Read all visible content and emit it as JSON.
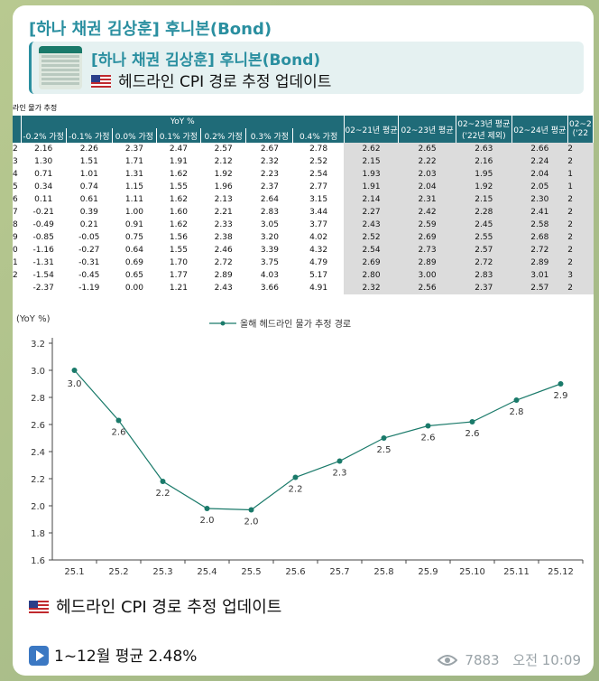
{
  "message": {
    "channel_title": "[하나 채권 김상훈] 후니본(Bond)",
    "reply": {
      "title": "[하나 채권 김상훈] 후니본(Bond)",
      "text": "헤드라인 CPI 경로 추정 업데이트"
    },
    "caption_line": "헤드라인 CPI 경로 추정 업데이트",
    "summary": "1~12월 평균 2.48%",
    "views": "7883",
    "time": "오전 10:09",
    "icons": {
      "flag": "us-flag-icon",
      "play": "play-button-icon",
      "views": "eye-icon"
    }
  },
  "table": {
    "label": "라인 물가 추정",
    "group_header": "YoY %",
    "columns": [
      "-0.2% 가정",
      "-0.1% 가정",
      "0.0% 가정",
      "0.1% 가정",
      "0.2% 가정",
      "0.3% 가정",
      "0.4% 가정"
    ],
    "avg_columns": [
      "02~21년 평균",
      "02~23년 평균",
      "02~23년 평균",
      "02~24년 평균",
      "02~2"
    ],
    "avg_sub": [
      "",
      "",
      "('22년 제외)",
      "",
      "('22"
    ],
    "rows": [
      {
        "idx": "2",
        "v": [
          "2.16",
          "2.26",
          "2.37",
          "2.47",
          "2.57",
          "2.67",
          "2.78"
        ],
        "a": [
          "2.62",
          "2.65",
          "2.63",
          "2.66",
          "2"
        ]
      },
      {
        "idx": "3",
        "v": [
          "1.30",
          "1.51",
          "1.71",
          "1.91",
          "2.12",
          "2.32",
          "2.52"
        ],
        "a": [
          "2.15",
          "2.22",
          "2.16",
          "2.24",
          "2"
        ]
      },
      {
        "idx": "4",
        "v": [
          "0.71",
          "1.01",
          "1.31",
          "1.62",
          "1.92",
          "2.23",
          "2.54"
        ],
        "a": [
          "1.93",
          "2.03",
          "1.95",
          "2.04",
          "1"
        ]
      },
      {
        "idx": "5",
        "v": [
          "0.34",
          "0.74",
          "1.15",
          "1.55",
          "1.96",
          "2.37",
          "2.77"
        ],
        "a": [
          "1.91",
          "2.04",
          "1.92",
          "2.05",
          "1"
        ]
      },
      {
        "idx": "6",
        "v": [
          "0.11",
          "0.61",
          "1.11",
          "1.62",
          "2.13",
          "2.64",
          "3.15"
        ],
        "a": [
          "2.14",
          "2.31",
          "2.15",
          "2.30",
          "2"
        ]
      },
      {
        "idx": "7",
        "v": [
          "-0.21",
          "0.39",
          "1.00",
          "1.60",
          "2.21",
          "2.83",
          "3.44"
        ],
        "a": [
          "2.27",
          "2.42",
          "2.28",
          "2.41",
          "2"
        ]
      },
      {
        "idx": "8",
        "v": [
          "-0.49",
          "0.21",
          "0.91",
          "1.62",
          "2.33",
          "3.05",
          "3.77"
        ],
        "a": [
          "2.43",
          "2.59",
          "2.45",
          "2.58",
          "2"
        ]
      },
      {
        "idx": "9",
        "v": [
          "-0.85",
          "-0.05",
          "0.75",
          "1.56",
          "2.38",
          "3.20",
          "4.02"
        ],
        "a": [
          "2.52",
          "2.69",
          "2.55",
          "2.68",
          "2"
        ]
      },
      {
        "idx": "0",
        "v": [
          "-1.16",
          "-0.27",
          "0.64",
          "1.55",
          "2.46",
          "3.39",
          "4.32"
        ],
        "a": [
          "2.54",
          "2.73",
          "2.57",
          "2.72",
          "2"
        ]
      },
      {
        "idx": "1",
        "v": [
          "-1.31",
          "-0.31",
          "0.69",
          "1.70",
          "2.72",
          "3.75",
          "4.79"
        ],
        "a": [
          "2.69",
          "2.89",
          "2.72",
          "2.89",
          "2"
        ]
      },
      {
        "idx": "2",
        "v": [
          "-1.54",
          "-0.45",
          "0.65",
          "1.77",
          "2.89",
          "4.03",
          "5.17"
        ],
        "a": [
          "2.80",
          "3.00",
          "2.83",
          "3.01",
          "3"
        ]
      },
      {
        "idx": "",
        "v": [
          "-2.37",
          "-1.19",
          "0.00",
          "1.21",
          "2.43",
          "3.66",
          "4.91"
        ],
        "a": [
          "2.32",
          "2.56",
          "2.37",
          "2.57",
          "2"
        ]
      }
    ]
  },
  "chart_data": {
    "type": "line",
    "title": "",
    "ylabel": "(YoY %)",
    "xlabel": "",
    "legend": "top-center",
    "categories": [
      "25.1",
      "25.2",
      "25.3",
      "25.4",
      "25.5",
      "25.6",
      "25.7",
      "25.8",
      "25.9",
      "25.10",
      "25.11",
      "25.12"
    ],
    "series": [
      {
        "name": "올해 헤드라인 물가 추정 경로",
        "values": [
          3.0,
          2.63,
          2.18,
          1.98,
          1.97,
          2.21,
          2.33,
          2.5,
          2.59,
          2.62,
          2.78,
          2.9
        ],
        "labels": [
          "3.0",
          "2.6",
          "2.2",
          "2.0",
          "2.0",
          "2.2",
          "2.3",
          "2.5",
          "2.6",
          "2.6",
          "2.8",
          "2.9"
        ]
      }
    ],
    "yticks": [
      "1.6",
      "1.8",
      "2.0",
      "2.2",
      "2.4",
      "2.6",
      "2.8",
      "3.0",
      "3.2"
    ],
    "ylim": [
      1.6,
      3.2
    ],
    "grid": false,
    "line_color": "#1a7a6a"
  }
}
